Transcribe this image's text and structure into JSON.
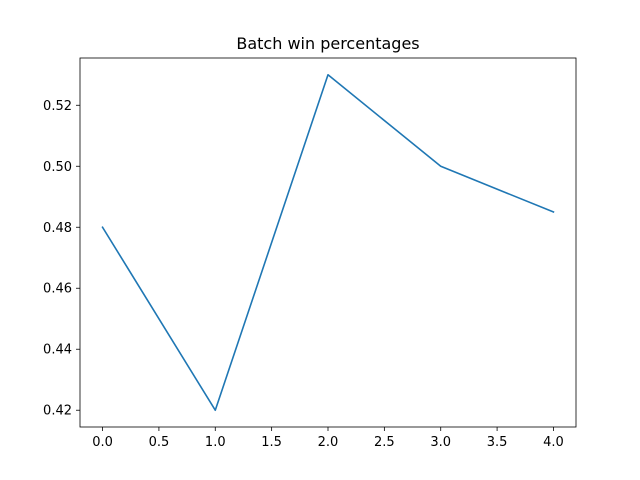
{
  "chart_data": {
    "type": "line",
    "title": "Batch win percentages",
    "xlabel": "",
    "ylabel": "",
    "x": [
      0,
      1,
      2,
      3,
      4
    ],
    "series": [
      {
        "values": [
          0.48,
          0.42,
          0.53,
          0.5,
          0.485
        ],
        "color": "#1f77b4"
      }
    ],
    "xlim": [
      -0.2,
      4.2
    ],
    "ylim": [
      0.4145,
      0.5355
    ],
    "xticks": [
      0.0,
      0.5,
      1.0,
      1.5,
      2.0,
      2.5,
      3.0,
      3.5,
      4.0
    ],
    "xtick_labels": [
      "0.0",
      "0.5",
      "1.0",
      "1.5",
      "2.0",
      "2.5",
      "3.0",
      "3.5",
      "4.0"
    ],
    "yticks": [
      0.42,
      0.44,
      0.46,
      0.48,
      0.5,
      0.52
    ],
    "ytick_labels": [
      "0.42",
      "0.44",
      "0.46",
      "0.48",
      "0.50",
      "0.52"
    ],
    "grid": false,
    "legend": false
  }
}
